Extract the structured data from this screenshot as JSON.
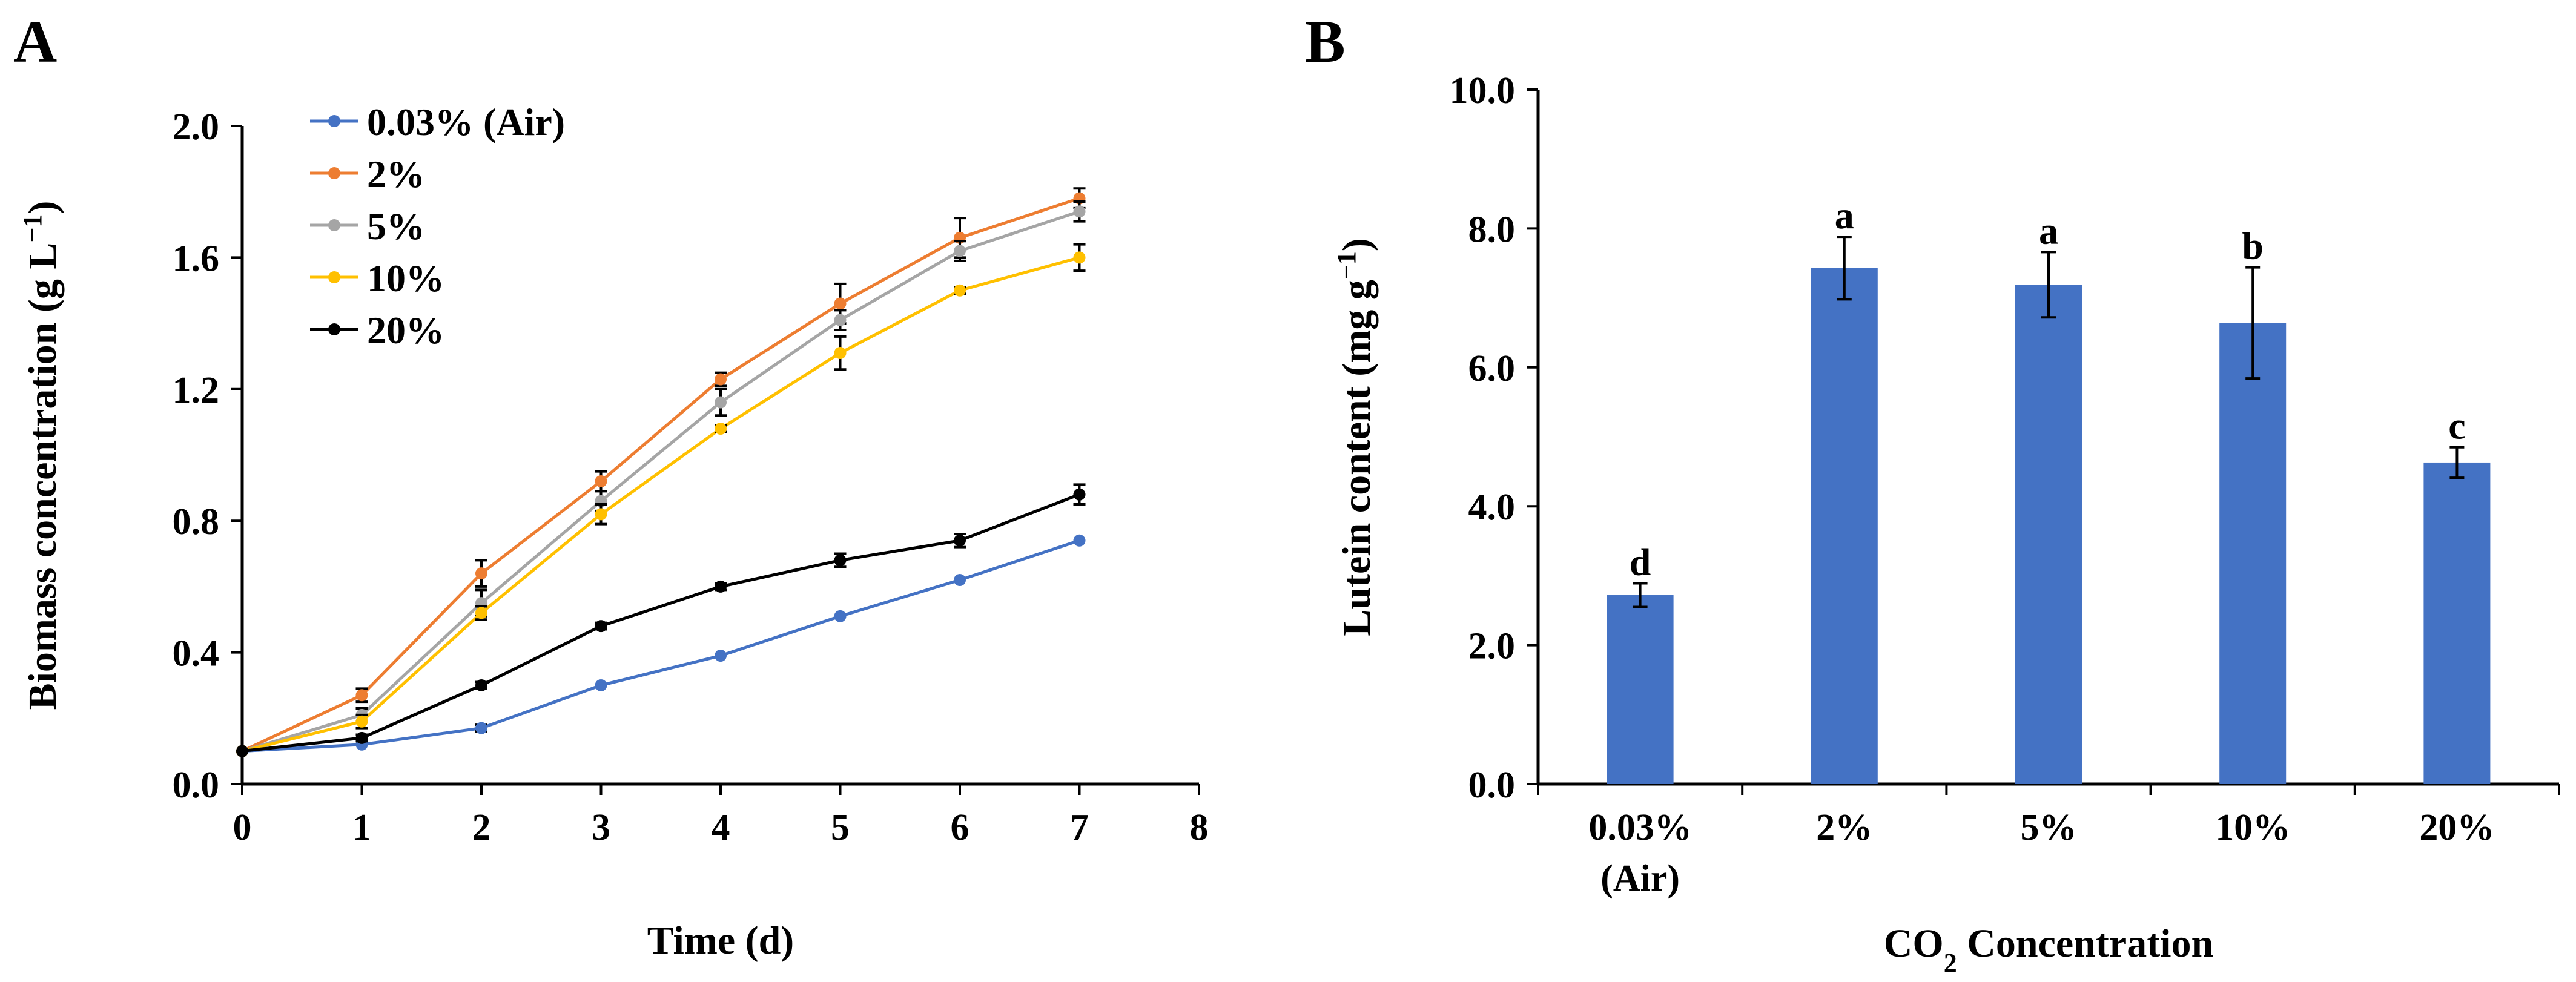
{
  "chart_data": [
    {
      "panel": "A",
      "type": "line",
      "title": "",
      "xlabel": "Time (d)",
      "ylabel": "Biomass  concentration (g L⁻¹)",
      "xlim": [
        0,
        8
      ],
      "ylim": [
        0,
        2.0
      ],
      "xticks": [
        "0",
        "1",
        "2",
        "3",
        "4",
        "5",
        "6",
        "7",
        "8"
      ],
      "yticks": [
        "0.0",
        "0.4",
        "0.8",
        "1.2",
        "1.6",
        "2.0"
      ],
      "legend_position": "top-left",
      "x": [
        0,
        1,
        2,
        3,
        4,
        5,
        6,
        7
      ],
      "series": [
        {
          "name": "0.03% (Air)",
          "color": "#4472C4",
          "values": [
            0.1,
            0.12,
            0.17,
            0.3,
            0.39,
            0.51,
            0.62,
            0.74
          ],
          "errors": [
            0,
            0,
            0.01,
            0,
            0,
            0,
            0,
            0
          ]
        },
        {
          "name": "2%",
          "color": "#ED7D31",
          "values": [
            0.1,
            0.27,
            0.64,
            0.92,
            1.23,
            1.46,
            1.66,
            1.78
          ],
          "errors": [
            0,
            0.02,
            0.04,
            0.03,
            0.02,
            0.06,
            0.06,
            0.03
          ]
        },
        {
          "name": "5%",
          "color": "#A5A5A5",
          "values": [
            0.1,
            0.21,
            0.55,
            0.86,
            1.16,
            1.41,
            1.62,
            1.74
          ],
          "errors": [
            0,
            0.02,
            0.04,
            0.03,
            0.04,
            0.03,
            0.03,
            0.03
          ]
        },
        {
          "name": "10%",
          "color": "#FFC000",
          "values": [
            0.1,
            0.19,
            0.52,
            0.82,
            1.08,
            1.31,
            1.5,
            1.6
          ],
          "errors": [
            0,
            0.02,
            0.02,
            0.03,
            0.01,
            0.05,
            0.01,
            0.04
          ]
        },
        {
          "name": "20%",
          "color": "#000000",
          "values": [
            0.1,
            0.14,
            0.3,
            0.48,
            0.6,
            0.68,
            0.74,
            0.88
          ],
          "errors": [
            0,
            0.01,
            0.01,
            0.01,
            0.01,
            0.02,
            0.02,
            0.03
          ]
        }
      ]
    },
    {
      "panel": "B",
      "type": "bar",
      "title": "",
      "xlabel": "CO₂ Concentration",
      "ylabel": "Lutein content (mg g⁻¹)",
      "ylim": [
        0,
        10.0
      ],
      "yticks": [
        "0.0",
        "2.0",
        "4.0",
        "6.0",
        "8.0",
        "10.0"
      ],
      "categories": [
        [
          "0.03%",
          "(Air)"
        ],
        [
          "2%"
        ],
        [
          "5%"
        ],
        [
          "10%"
        ],
        [
          "20%"
        ]
      ],
      "values": [
        2.72,
        7.43,
        7.19,
        6.64,
        4.63
      ],
      "errors": [
        0.17,
        0.45,
        0.47,
        0.8,
        0.22
      ],
      "significance_letters": [
        "d",
        "a",
        "a",
        "b",
        "c"
      ],
      "bar_color": "#4472C4"
    }
  ]
}
